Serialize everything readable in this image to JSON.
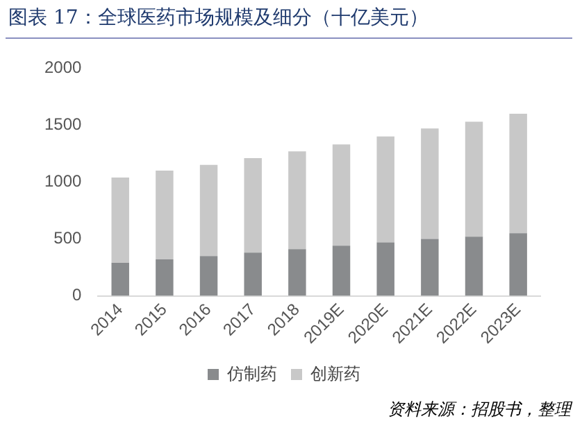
{
  "chart_data": {
    "type": "bar",
    "title": "图表 17：全球医药市场规模及细分（十亿美元）",
    "categories": [
      "2014",
      "2015",
      "2016",
      "2017",
      "2018",
      "2019E",
      "2020E",
      "2021E",
      "2022E",
      "2023E"
    ],
    "stacked": true,
    "series": [
      {
        "name": "仿制药",
        "color": "#898b8d",
        "values": [
          290,
          320,
          350,
          380,
          410,
          440,
          470,
          500,
          520,
          550
        ]
      },
      {
        "name": "创新药",
        "color": "#c8c8c8",
        "values": [
          750,
          780,
          800,
          830,
          860,
          890,
          930,
          970,
          1010,
          1050
        ]
      }
    ],
    "ylim": [
      0,
      2000
    ],
    "yticks": [
      0,
      500,
      1000,
      1500,
      2000
    ],
    "grid": false,
    "legend": "bottom",
    "annotations": [
      "资料来源：招股书，整理"
    ]
  }
}
